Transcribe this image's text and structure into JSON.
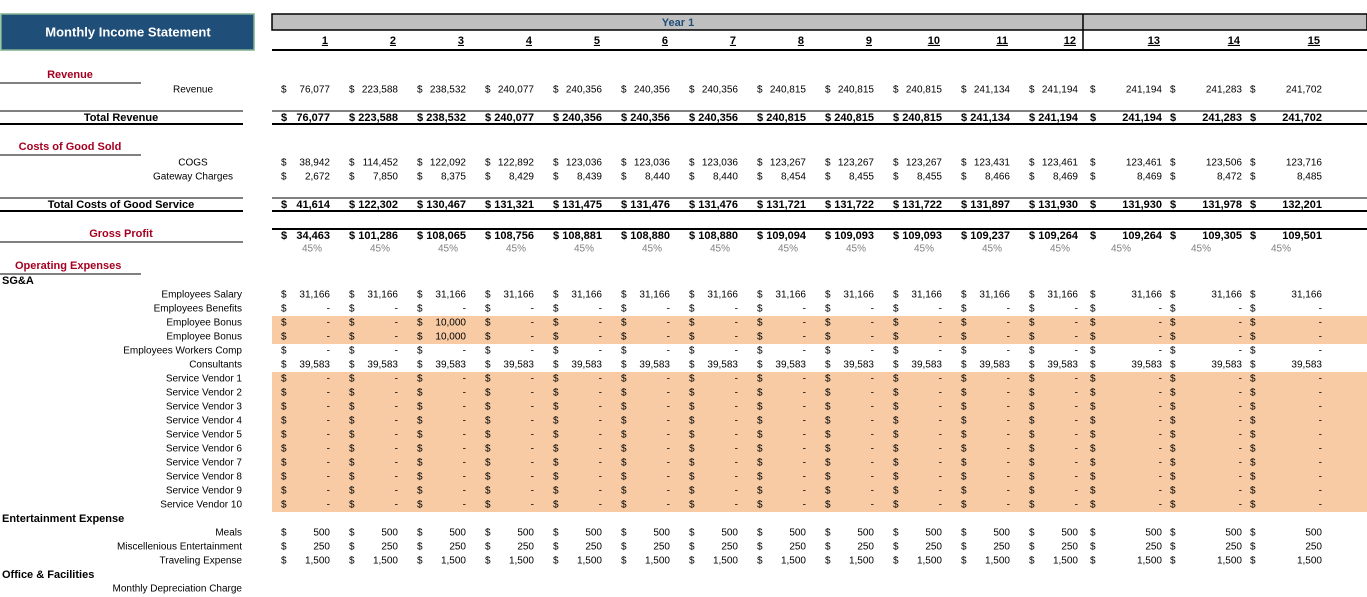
{
  "title": "Monthly Income Statement",
  "currency": "$",
  "year_label": "Year 1",
  "periods": [
    "1",
    "2",
    "3",
    "4",
    "5",
    "6",
    "7",
    "8",
    "9",
    "10",
    "11",
    "12",
    "13",
    "14",
    "15"
  ],
  "revenue": {
    "heading": "Revenue",
    "items": [
      {
        "label": "Revenue",
        "values": [
          "76,077",
          "223,588",
          "238,532",
          "240,077",
          "240,356",
          "240,356",
          "240,356",
          "240,815",
          "240,815",
          "240,815",
          "241,134",
          "241,194",
          "241,194",
          "241,283",
          "241,702"
        ]
      }
    ],
    "total": {
      "label": "Total Revenue",
      "values": [
        "76,077",
        "223,588",
        "238,532",
        "240,077",
        "240,356",
        "240,356",
        "240,356",
        "240,815",
        "240,815",
        "240,815",
        "241,134",
        "241,194",
        "241,194",
        "241,283",
        "241,702"
      ]
    }
  },
  "cost_of_goods": {
    "heading": "Costs of Good Sold",
    "items": [
      {
        "label": "COGS",
        "values": [
          "38,942",
          "114,452",
          "122,092",
          "122,892",
          "123,036",
          "123,036",
          "123,036",
          "123,267",
          "123,267",
          "123,267",
          "123,431",
          "123,461",
          "123,461",
          "123,506",
          "123,716"
        ]
      },
      {
        "label": "Gateway Charges",
        "values": [
          "2,672",
          "7,850",
          "8,375",
          "8,429",
          "8,439",
          "8,440",
          "8,440",
          "8,454",
          "8,455",
          "8,455",
          "8,466",
          "8,469",
          "8,469",
          "8,472",
          "8,485"
        ]
      }
    ],
    "total": {
      "label": "Total Costs of Good Service",
      "values": [
        "41,614",
        "122,302",
        "130,467",
        "131,321",
        "131,475",
        "131,476",
        "131,476",
        "131,721",
        "131,722",
        "131,722",
        "131,897",
        "131,930",
        "131,930",
        "131,978",
        "132,201"
      ]
    }
  },
  "gross_profit": {
    "label": "Gross Profit",
    "values": [
      "34,463",
      "101,286",
      "108,065",
      "108,756",
      "108,881",
      "108,880",
      "108,880",
      "109,094",
      "109,093",
      "109,093",
      "109,237",
      "109,264",
      "109,264",
      "109,305",
      "109,501"
    ],
    "margins": [
      "45%",
      "45%",
      "45%",
      "45%",
      "45%",
      "45%",
      "45%",
      "45%",
      "45%",
      "45%",
      "45%",
      "45%",
      "45%",
      "45%",
      "45%"
    ]
  },
  "operating_expenses": {
    "heading": "Operating Expenses",
    "groups": [
      {
        "name": "SG&A",
        "items": [
          {
            "label": "Employees Salary",
            "values": [
              "31,166",
              "31,166",
              "31,166",
              "31,166",
              "31,166",
              "31,166",
              "31,166",
              "31,166",
              "31,166",
              "31,166",
              "31,166",
              "31,166",
              "31,166",
              "31,166",
              "31,166"
            ]
          },
          {
            "label": "Employees Benefits",
            "values": [
              "-",
              "-",
              "-",
              "-",
              "-",
              "-",
              "-",
              "-",
              "-",
              "-",
              "-",
              "-",
              "-",
              "-",
              "-"
            ]
          },
          {
            "label": "Employee Bonus",
            "fill": "#f8cba4",
            "values": [
              "-",
              "-",
              "10,000",
              "-",
              "-",
              "-",
              "-",
              "-",
              "-",
              "-",
              "-",
              "-",
              "-",
              "-",
              "-"
            ]
          },
          {
            "label": "Employee Bonus",
            "fill": "#f8cba4",
            "values": [
              "-",
              "-",
              "10,000",
              "-",
              "-",
              "-",
              "-",
              "-",
              "-",
              "-",
              "-",
              "-",
              "-",
              "-",
              "-"
            ]
          },
          {
            "label": "Employees Workers Comp",
            "values": [
              "-",
              "-",
              "-",
              "-",
              "-",
              "-",
              "-",
              "-",
              "-",
              "-",
              "-",
              "-",
              "-",
              "-",
              "-"
            ]
          },
          {
            "label": "Consultants",
            "values": [
              "39,583",
              "39,583",
              "39,583",
              "39,583",
              "39,583",
              "39,583",
              "39,583",
              "39,583",
              "39,583",
              "39,583",
              "39,583",
              "39,583",
              "39,583",
              "39,583",
              "39,583"
            ]
          },
          {
            "label": "Service Vendor 1",
            "fill": "#f8cba4",
            "values": [
              "-",
              "-",
              "-",
              "-",
              "-",
              "-",
              "-",
              "-",
              "-",
              "-",
              "-",
              "-",
              "-",
              "-",
              "-"
            ]
          },
          {
            "label": "Service Vendor 2",
            "fill": "#f8cba4",
            "values": [
              "-",
              "-",
              "-",
              "-",
              "-",
              "-",
              "-",
              "-",
              "-",
              "-",
              "-",
              "-",
              "-",
              "-",
              "-"
            ]
          },
          {
            "label": "Service Vendor 3",
            "fill": "#f8cba4",
            "values": [
              "-",
              "-",
              "-",
              "-",
              "-",
              "-",
              "-",
              "-",
              "-",
              "-",
              "-",
              "-",
              "-",
              "-",
              "-"
            ]
          },
          {
            "label": "Service Vendor 4",
            "fill": "#f8cba4",
            "values": [
              "-",
              "-",
              "-",
              "-",
              "-",
              "-",
              "-",
              "-",
              "-",
              "-",
              "-",
              "-",
              "-",
              "-",
              "-"
            ]
          },
          {
            "label": "Service Vendor 5",
            "fill": "#f8cba4",
            "values": [
              "-",
              "-",
              "-",
              "-",
              "-",
              "-",
              "-",
              "-",
              "-",
              "-",
              "-",
              "-",
              "-",
              "-",
              "-"
            ]
          },
          {
            "label": "Service Vendor 6",
            "fill": "#f8cba4",
            "values": [
              "-",
              "-",
              "-",
              "-",
              "-",
              "-",
              "-",
              "-",
              "-",
              "-",
              "-",
              "-",
              "-",
              "-",
              "-"
            ]
          },
          {
            "label": "Service Vendor 7",
            "fill": "#f8cba4",
            "values": [
              "-",
              "-",
              "-",
              "-",
              "-",
              "-",
              "-",
              "-",
              "-",
              "-",
              "-",
              "-",
              "-",
              "-",
              "-"
            ]
          },
          {
            "label": "Service Vendor 8",
            "fill": "#f8cba4",
            "values": [
              "-",
              "-",
              "-",
              "-",
              "-",
              "-",
              "-",
              "-",
              "-",
              "-",
              "-",
              "-",
              "-",
              "-",
              "-"
            ]
          },
          {
            "label": "Service Vendor 9",
            "fill": "#f8cba4",
            "values": [
              "-",
              "-",
              "-",
              "-",
              "-",
              "-",
              "-",
              "-",
              "-",
              "-",
              "-",
              "-",
              "-",
              "-",
              "-"
            ]
          },
          {
            "label": "Service Vendor 10",
            "fill": "#f8cba4",
            "values": [
              "-",
              "-",
              "-",
              "-",
              "-",
              "-",
              "-",
              "-",
              "-",
              "-",
              "-",
              "-",
              "-",
              "-",
              "-"
            ]
          }
        ]
      },
      {
        "name": "Entertainment Expense",
        "items": [
          {
            "label": "Meals",
            "values": [
              "500",
              "500",
              "500",
              "500",
              "500",
              "500",
              "500",
              "500",
              "500",
              "500",
              "500",
              "500",
              "500",
              "500",
              "500"
            ]
          },
          {
            "label": "Miscellenious Entertainment",
            "values": [
              "250",
              "250",
              "250",
              "250",
              "250",
              "250",
              "250",
              "250",
              "250",
              "250",
              "250",
              "250",
              "250",
              "250",
              "250"
            ]
          },
          {
            "label": "Traveling Expense",
            "values": [
              "1,500",
              "1,500",
              "1,500",
              "1,500",
              "1,500",
              "1,500",
              "1,500",
              "1,500",
              "1,500",
              "1,500",
              "1,500",
              "1,500",
              "1,500",
              "1,500",
              "1,500"
            ]
          }
        ]
      },
      {
        "name": "Office & Facilities",
        "items": [
          {
            "label": "Monthly Depreciation Charge",
            "values": []
          }
        ]
      }
    ]
  }
}
